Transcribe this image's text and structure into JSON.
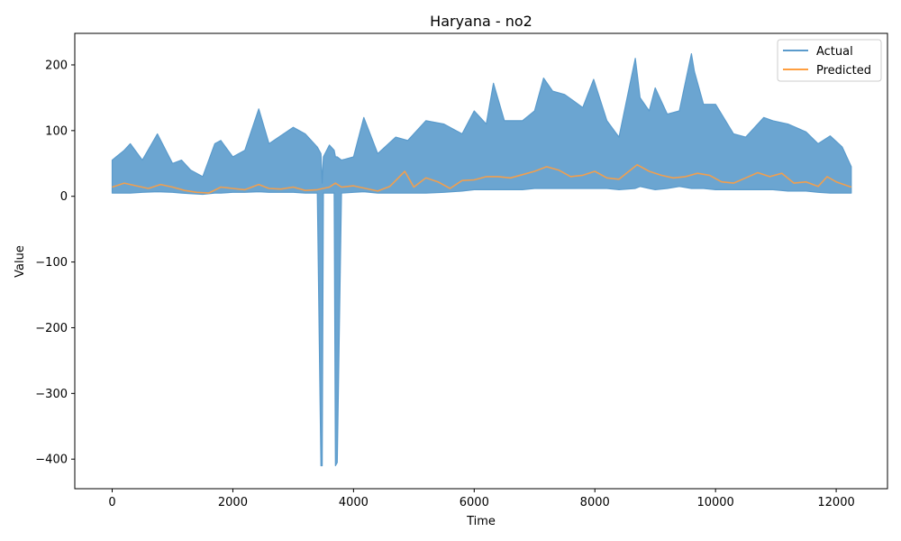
{
  "chart_data": {
    "type": "line",
    "title": "Haryana - no2",
    "xlabel": "Time",
    "ylabel": "Value",
    "xlim": [
      -620,
      12850
    ],
    "ylim": [
      -445,
      248
    ],
    "xticks": [
      0,
      2000,
      4000,
      6000,
      8000,
      10000,
      12000
    ],
    "yticks": [
      -400,
      -300,
      -200,
      -100,
      0,
      100,
      200
    ],
    "tick_labels": {
      "x": [
        "0",
        "2000",
        "4000",
        "6000",
        "8000",
        "10000",
        "12000"
      ],
      "y": [
        "−400",
        "−300",
        "−200",
        "−100",
        "0",
        "100",
        "200"
      ]
    },
    "grid": false,
    "legend_position": "top-right",
    "colors": {
      "actual": "#5b9bcc",
      "predicted": "#ff9f40"
    },
    "series": [
      {
        "name": "Actual",
        "representation": "envelope",
        "x": [
          0,
          200,
          300,
          500,
          750,
          1000,
          1150,
          1300,
          1500,
          1700,
          1800,
          2000,
          2200,
          2430,
          2600,
          3000,
          3200,
          3400,
          3460,
          3480,
          3500,
          3600,
          3680,
          3700,
          3730,
          3800,
          4000,
          4170,
          4400,
          4700,
          4900,
          5200,
          5500,
          5800,
          6000,
          6200,
          6320,
          6500,
          6800,
          7000,
          7150,
          7300,
          7500,
          7800,
          7980,
          8200,
          8400,
          8670,
          8750,
          8900,
          9000,
          9200,
          9400,
          9600,
          9650,
          9800,
          10000,
          10300,
          10500,
          10800,
          10950,
          11200,
          11500,
          11700,
          11900,
          12100,
          12250
        ],
        "low": [
          5,
          5,
          5,
          6,
          7,
          6,
          5,
          4,
          3,
          5,
          5,
          6,
          6,
          7,
          6,
          6,
          5,
          5,
          -410,
          -410,
          5,
          5,
          5,
          -410,
          -405,
          5,
          6,
          7,
          5,
          5,
          5,
          5,
          6,
          8,
          10,
          10,
          10,
          10,
          10,
          12,
          12,
          12,
          12,
          12,
          12,
          12,
          10,
          12,
          15,
          12,
          10,
          12,
          15,
          12,
          12,
          12,
          10,
          10,
          10,
          10,
          10,
          8,
          8,
          6,
          5,
          5,
          5
        ],
        "high": [
          55,
          70,
          80,
          55,
          95,
          50,
          55,
          40,
          30,
          80,
          85,
          60,
          70,
          133,
          80,
          105,
          95,
          75,
          65,
          20,
          60,
          78,
          70,
          60,
          60,
          55,
          60,
          120,
          65,
          90,
          85,
          115,
          110,
          95,
          130,
          110,
          172,
          115,
          115,
          130,
          180,
          160,
          155,
          135,
          178,
          115,
          90,
          210,
          150,
          130,
          165,
          125,
          130,
          217,
          190,
          140,
          140,
          95,
          90,
          120,
          115,
          110,
          98,
          80,
          92,
          75,
          45
        ]
      },
      {
        "name": "Predicted",
        "representation": "line",
        "x": [
          0,
          200,
          400,
          600,
          800,
          1000,
          1200,
          1400,
          1600,
          1800,
          2000,
          2200,
          2430,
          2600,
          2800,
          3000,
          3200,
          3400,
          3600,
          3700,
          3800,
          4000,
          4200,
          4400,
          4600,
          4850,
          5000,
          5200,
          5400,
          5600,
          5800,
          6000,
          6200,
          6400,
          6600,
          6800,
          7000,
          7200,
          7400,
          7600,
          7800,
          8000,
          8200,
          8400,
          8700,
          8900,
          9100,
          9300,
          9500,
          9700,
          9900,
          10100,
          10300,
          10500,
          10700,
          10900,
          11100,
          11300,
          11500,
          11700,
          11850,
          12000,
          12250
        ],
        "y": [
          14,
          20,
          16,
          12,
          18,
          14,
          9,
          6,
          5,
          14,
          12,
          10,
          18,
          12,
          11,
          14,
          9,
          10,
          14,
          20,
          14,
          16,
          12,
          8,
          15,
          38,
          14,
          28,
          22,
          12,
          24,
          25,
          30,
          30,
          28,
          33,
          38,
          45,
          40,
          30,
          32,
          38,
          28,
          26,
          48,
          38,
          32,
          28,
          30,
          35,
          32,
          22,
          20,
          28,
          36,
          30,
          35,
          20,
          22,
          15,
          30,
          22,
          14
        ]
      }
    ]
  }
}
